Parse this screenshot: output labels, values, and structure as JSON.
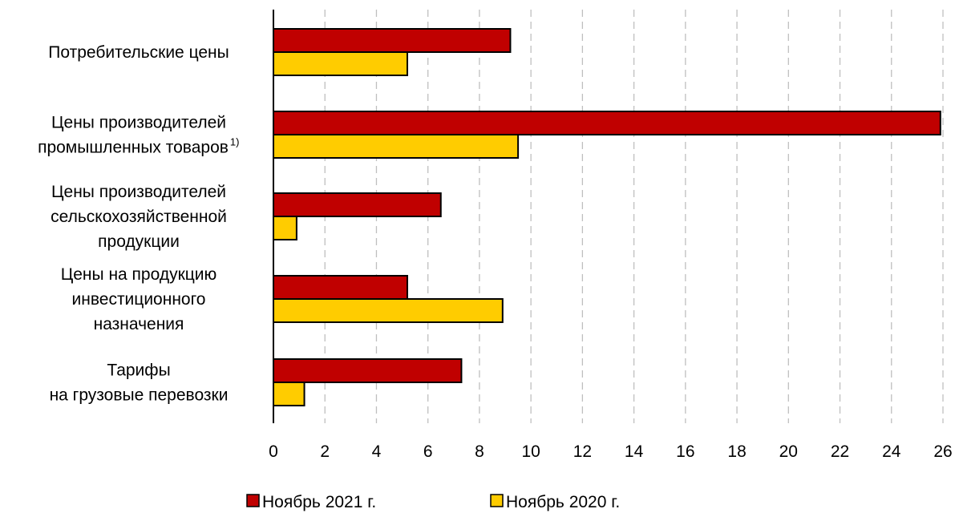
{
  "chart_data": {
    "type": "bar",
    "orientation": "horizontal",
    "categories": [
      [
        "Потребительские цены"
      ],
      [
        "Цены производителей",
        "промышленных товаров"
      ],
      [
        "Цены производителей",
        "сельскохозяйственной",
        "продукции"
      ],
      [
        "Цены на продукцию",
        "инвестиционного",
        "назначения"
      ],
      [
        "Тарифы",
        "на грузовые перевозки"
      ]
    ],
    "category_footnotes": [
      "",
      "1)",
      "",
      "",
      ""
    ],
    "series": [
      {
        "name": "Ноябрь 2021 г.",
        "color": "#C00000",
        "values": [
          9.2,
          25.9,
          6.5,
          5.2,
          7.3
        ]
      },
      {
        "name": "Ноябрь 2020 г.",
        "color": "#FFCC00",
        "values": [
          5.2,
          9.5,
          0.9,
          8.9,
          1.2
        ]
      }
    ],
    "xlim": [
      0,
      26
    ],
    "xticks": [
      0,
      2,
      4,
      6,
      8,
      10,
      12,
      14,
      16,
      18,
      20,
      22,
      24,
      26
    ],
    "grid": "vertical dashed",
    "legend": "bottom-center"
  }
}
